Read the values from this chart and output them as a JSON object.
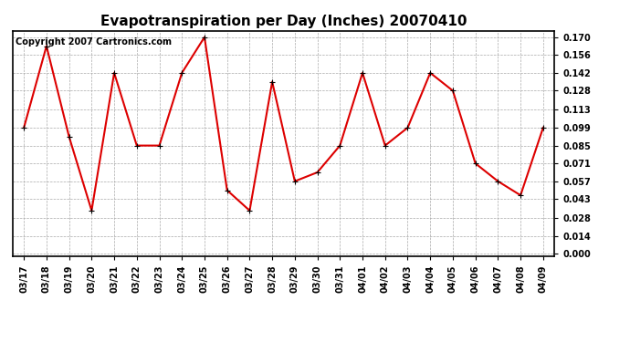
{
  "title": "Evapotranspiration per Day (Inches) 20070410",
  "copyright": "Copyright 2007 Cartronics.com",
  "x_labels": [
    "03/17",
    "03/18",
    "03/19",
    "03/20",
    "03/21",
    "03/22",
    "03/23",
    "03/24",
    "03/25",
    "03/26",
    "03/27",
    "03/28",
    "03/29",
    "03/30",
    "03/31",
    "04/01",
    "04/02",
    "04/03",
    "04/04",
    "04/05",
    "04/06",
    "04/07",
    "04/08",
    "04/09"
  ],
  "y_values": [
    0.099,
    0.163,
    0.092,
    0.034,
    0.142,
    0.085,
    0.085,
    0.142,
    0.17,
    0.05,
    0.034,
    0.135,
    0.057,
    0.064,
    0.085,
    0.142,
    0.085,
    0.099,
    0.142,
    0.128,
    0.071,
    0.057,
    0.046,
    0.099
  ],
  "line_color": "#dd0000",
  "marker": "+",
  "marker_size": 5,
  "background_color": "#ffffff",
  "grid_color": "#aaaaaa",
  "y_ticks": [
    0.0,
    0.014,
    0.028,
    0.043,
    0.057,
    0.071,
    0.085,
    0.099,
    0.113,
    0.128,
    0.142,
    0.156,
    0.17
  ],
  "ylim": [
    0.0,
    0.175
  ],
  "title_fontsize": 11,
  "tick_fontsize": 7,
  "copyright_fontsize": 7
}
